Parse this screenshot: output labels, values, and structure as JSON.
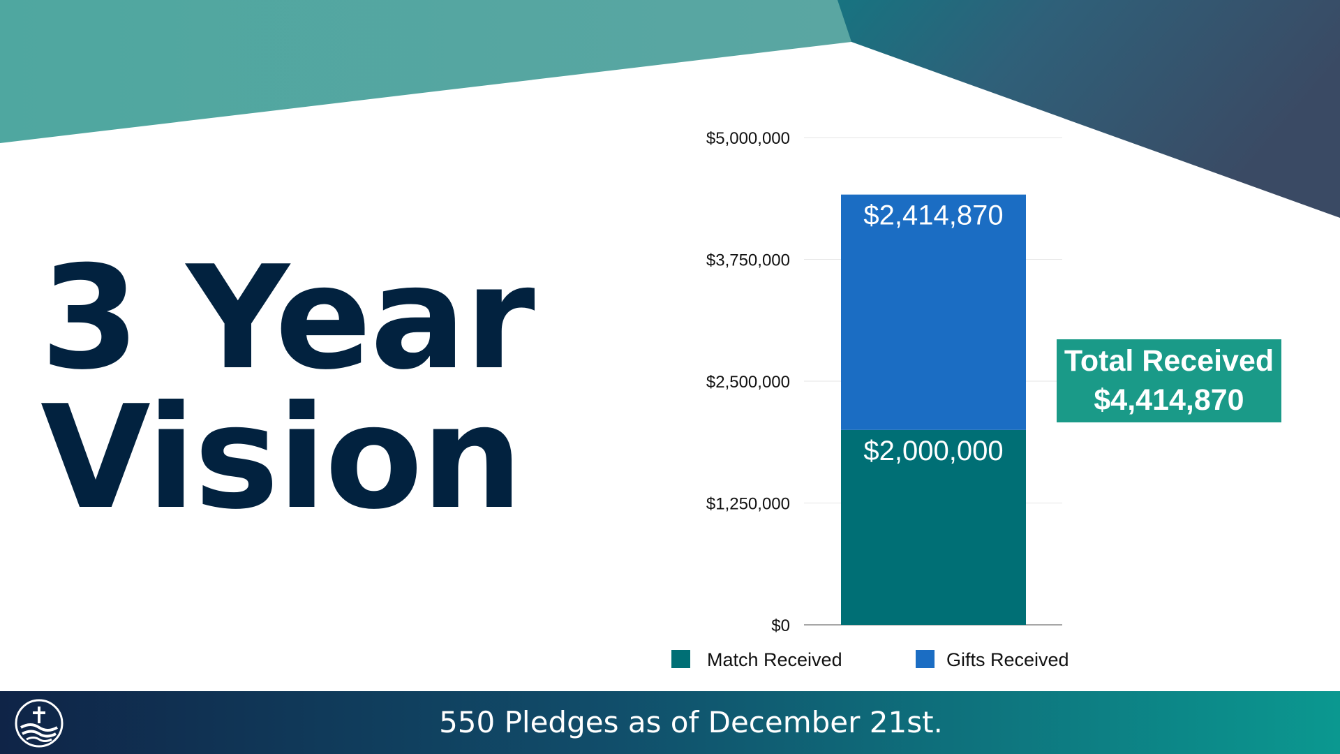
{
  "slide": {
    "title_line1": "3 Year",
    "title_line2": "Vision",
    "footer_text": "550 Pledges as of December 21st.",
    "logo_icon": "church-cross-wave-logo"
  },
  "total_box": {
    "line1": "Total Received",
    "line2": "$4,414,870"
  },
  "colors": {
    "title": "#02223f",
    "match": "#006f75",
    "gifts": "#1b6dc3",
    "total_box": "#1a9a88",
    "footer_start": "#0f2447",
    "footer_end": "#0b9890"
  },
  "chart_data": {
    "type": "bar",
    "stacked": true,
    "categories": [
      ""
    ],
    "series": [
      {
        "name": "Match Received",
        "values": [
          2000000
        ],
        "label": "$2,000,000",
        "color": "#006f75"
      },
      {
        "name": "Gifts Received",
        "values": [
          2414870
        ],
        "label": "$2,414,870",
        "color": "#1b6dc3"
      }
    ],
    "ylim": [
      0,
      5000000
    ],
    "yticks": [
      0,
      1250000,
      2500000,
      3750000,
      5000000
    ],
    "ytick_labels": [
      "$0",
      "$1,250,000",
      "$2,500,000",
      "$3,750,000",
      "$5,000,000"
    ],
    "grid": true,
    "legend_position": "bottom",
    "title": "",
    "xlabel": "",
    "ylabel": ""
  }
}
